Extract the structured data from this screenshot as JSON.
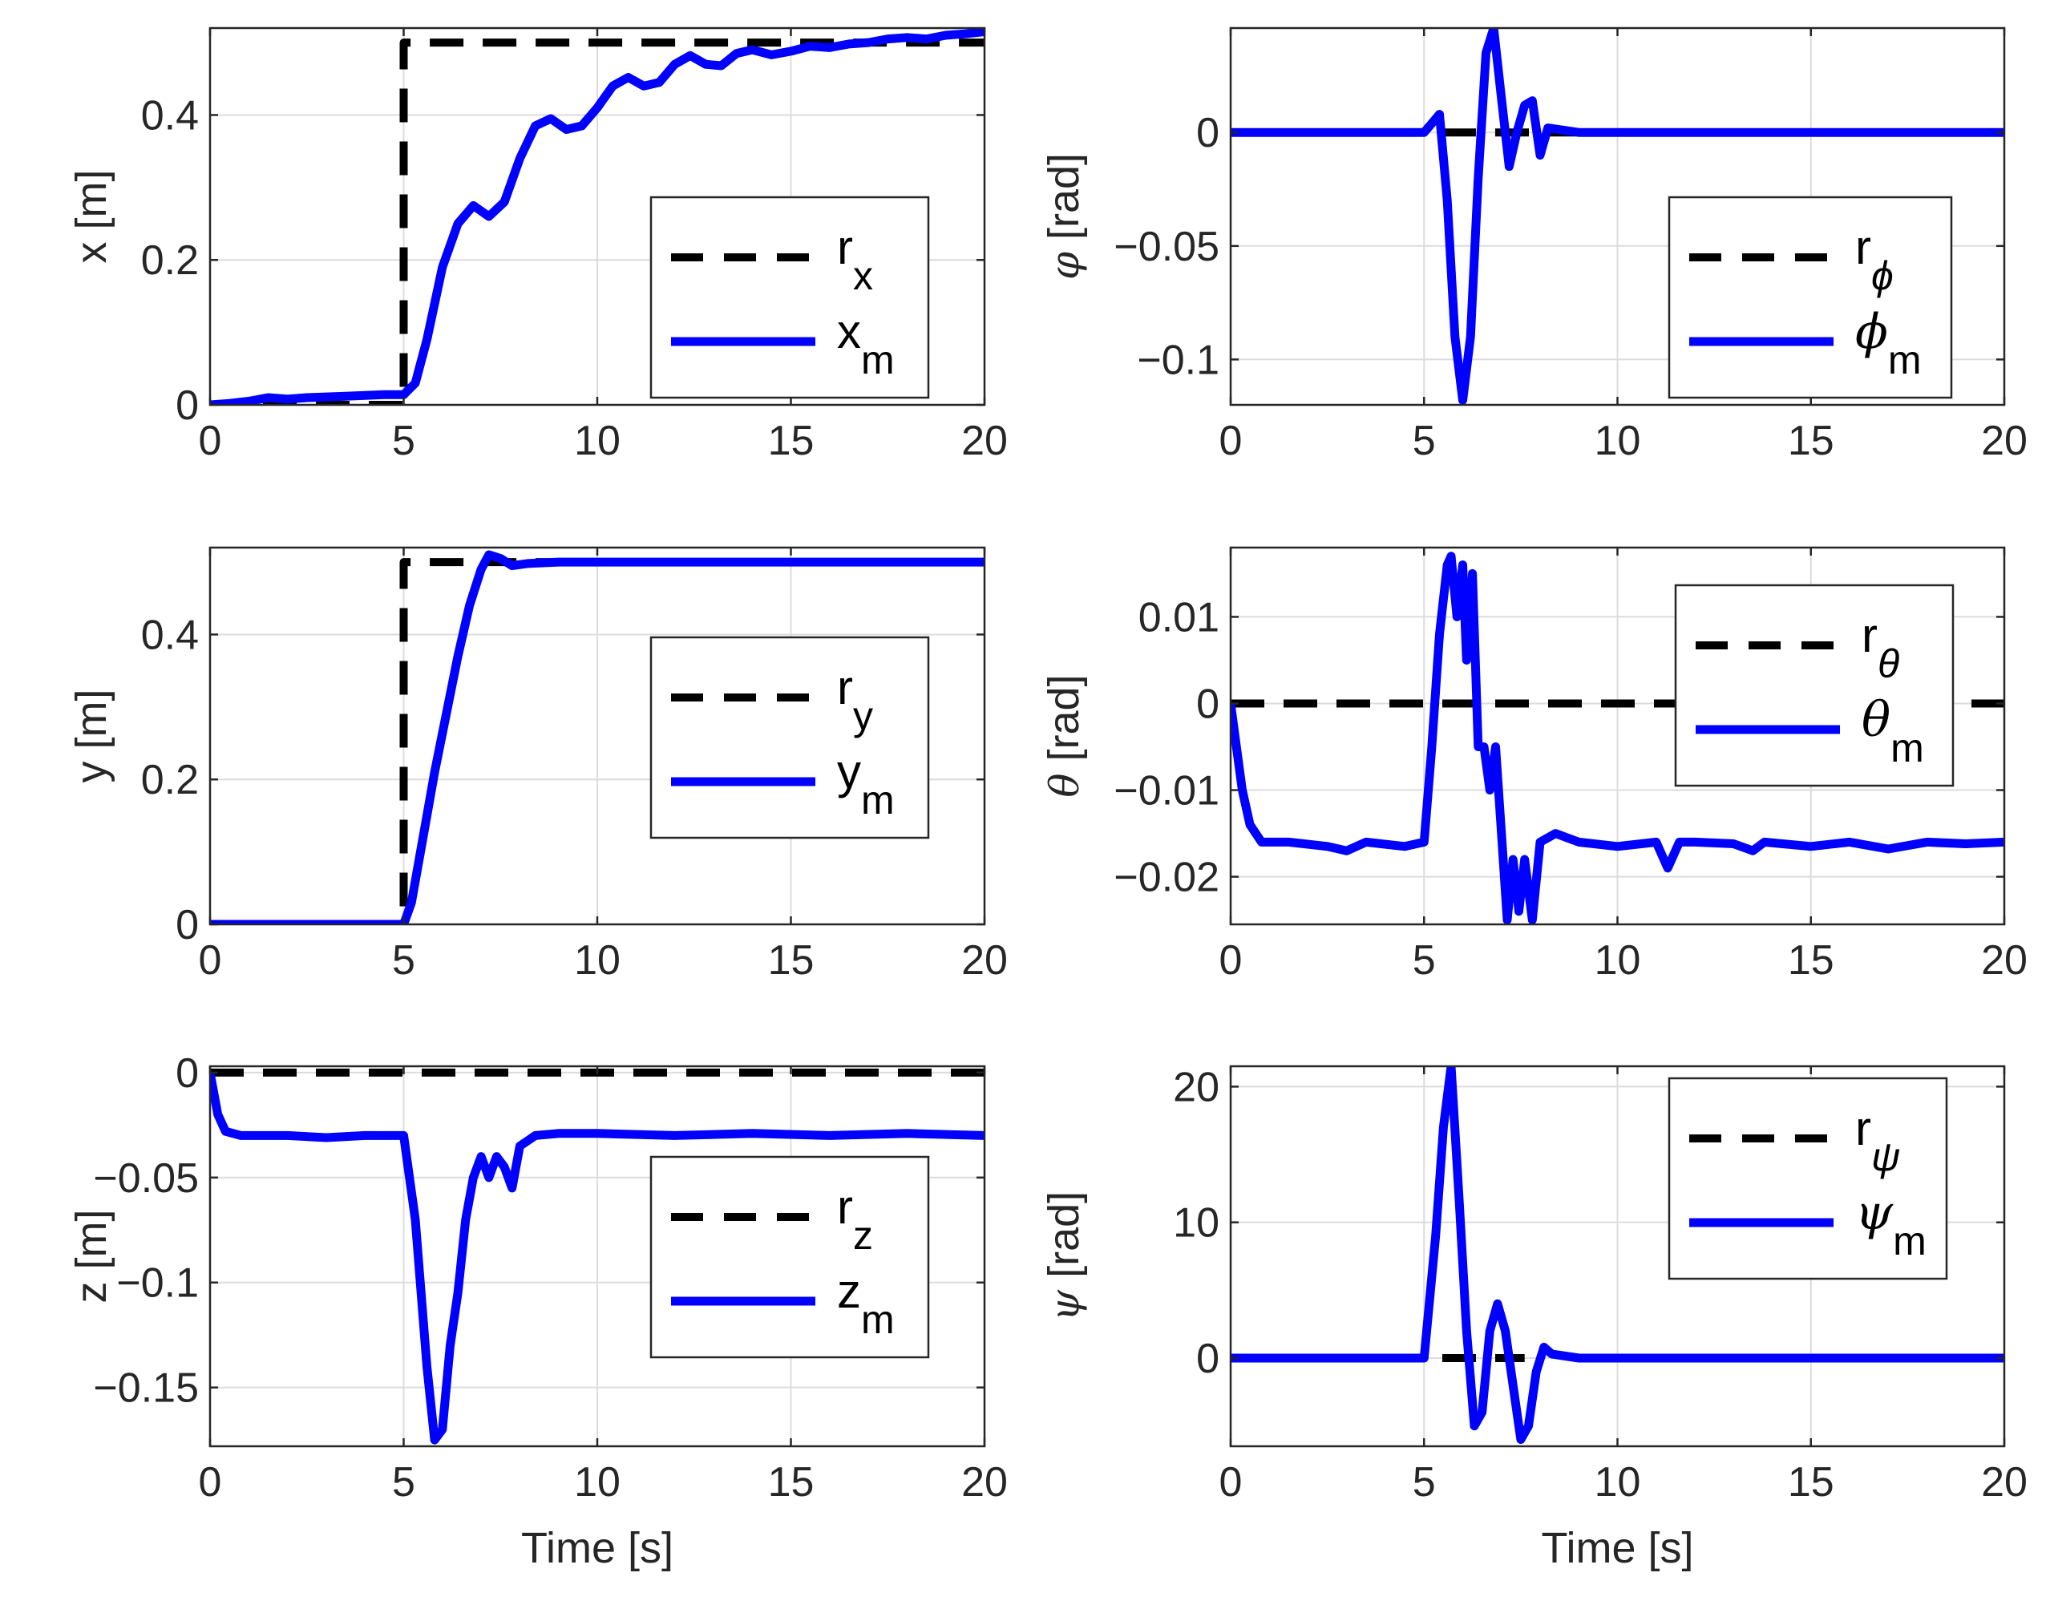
{
  "colors": {
    "reference": "#000000",
    "measured": "#0000ff",
    "grid": "#dcdcdc",
    "axis": "#262626"
  },
  "chart_data": [
    {
      "type": "line",
      "id": "x",
      "ylabel": "x [m]",
      "xlabel": "",
      "xlim": [
        0,
        20
      ],
      "ylim": [
        0,
        0.52
      ],
      "xticks": [
        0,
        5,
        10,
        15,
        20
      ],
      "xtick_labels": [
        "0",
        "5",
        "10",
        "15",
        "20"
      ],
      "yticks": [
        0,
        0.2,
        0.4
      ],
      "ytick_labels": [
        "0",
        "0.2",
        "0.4"
      ],
      "legend": {
        "position": "right-middle",
        "entries": [
          {
            "base": "r",
            "sub": "x",
            "greek": false
          },
          {
            "base": "x",
            "sub": "m",
            "greek": false
          }
        ]
      },
      "series": [
        {
          "name": "r_x",
          "style": "dashed",
          "x": [
            0,
            4.9,
            5.0,
            5.0,
            20
          ],
          "y": [
            0,
            0,
            0,
            0.5,
            0.5
          ]
        },
        {
          "name": "x_m",
          "style": "solid",
          "x": [
            0,
            0.5,
            1,
            1.5,
            2,
            2.5,
            3,
            3.5,
            4,
            4.5,
            5,
            5.3,
            5.6,
            6,
            6.4,
            6.8,
            7.2,
            7.6,
            8,
            8.4,
            8.8,
            9.2,
            9.6,
            10,
            10.4,
            10.8,
            11.2,
            11.6,
            12,
            12.4,
            12.8,
            13.2,
            13.6,
            14,
            14.5,
            15,
            15.5,
            16,
            16.5,
            17,
            17.5,
            18,
            18.5,
            19,
            19.5,
            20
          ],
          "y": [
            0.0,
            0.002,
            0.005,
            0.01,
            0.008,
            0.01,
            0.011,
            0.012,
            0.013,
            0.014,
            0.014,
            0.03,
            0.09,
            0.19,
            0.25,
            0.275,
            0.26,
            0.28,
            0.34,
            0.385,
            0.395,
            0.38,
            0.385,
            0.41,
            0.44,
            0.452,
            0.44,
            0.445,
            0.47,
            0.482,
            0.47,
            0.468,
            0.485,
            0.49,
            0.483,
            0.488,
            0.495,
            0.493,
            0.498,
            0.5,
            0.505,
            0.507,
            0.505,
            0.51,
            0.512,
            0.515
          ]
        }
      ]
    },
    {
      "type": "line",
      "id": "phi",
      "ylabel_greek": "φ",
      "ylabel_unit": " [rad]",
      "xlabel": "",
      "xlim": [
        0,
        20
      ],
      "ylim": [
        -0.12,
        0.046
      ],
      "xticks": [
        0,
        5,
        10,
        15,
        20
      ],
      "xtick_labels": [
        "0",
        "5",
        "10",
        "15",
        "20"
      ],
      "yticks": [
        -0.1,
        -0.05,
        0
      ],
      "ytick_labels": [
        "−0.1",
        "−0.05",
        "0"
      ],
      "legend": {
        "position": "right-lower",
        "entries": [
          {
            "base": "r",
            "sub": "ϕ",
            "greek": false
          },
          {
            "base": "ϕ",
            "sub": "m",
            "greek": true
          }
        ]
      },
      "series": [
        {
          "name": "r_phi",
          "style": "dashed",
          "x": [
            0,
            20
          ],
          "y": [
            0,
            0
          ]
        },
        {
          "name": "phi_m",
          "style": "solid",
          "x": [
            0,
            2,
            4,
            5,
            5.2,
            5.4,
            5.6,
            5.8,
            6.0,
            6.2,
            6.4,
            6.6,
            6.8,
            7.0,
            7.2,
            7.4,
            7.6,
            7.8,
            8.0,
            8.2,
            9,
            12,
            15,
            18,
            20
          ],
          "y": [
            0,
            0.0,
            0.0,
            0.0,
            0.004,
            0.008,
            -0.03,
            -0.09,
            -0.118,
            -0.09,
            -0.02,
            0.035,
            0.046,
            0.015,
            -0.015,
            0.0,
            0.012,
            0.014,
            -0.01,
            0.002,
            0.0,
            0.0,
            0.0,
            0.0,
            0.0
          ]
        }
      ]
    },
    {
      "type": "line",
      "id": "y",
      "ylabel": "y [m]",
      "xlabel": "",
      "xlim": [
        0,
        20
      ],
      "ylim": [
        0,
        0.52
      ],
      "xticks": [
        0,
        5,
        10,
        15,
        20
      ],
      "xtick_labels": [
        "0",
        "5",
        "10",
        "15",
        "20"
      ],
      "yticks": [
        0,
        0.2,
        0.4
      ],
      "ytick_labels": [
        "0",
        "0.2",
        "0.4"
      ],
      "legend": {
        "position": "right-middle",
        "entries": [
          {
            "base": "r",
            "sub": "y",
            "greek": false
          },
          {
            "base": "y",
            "sub": "m",
            "greek": false
          }
        ]
      },
      "series": [
        {
          "name": "r_y",
          "style": "dashed",
          "x": [
            0,
            4.9,
            5.0,
            5.0,
            20
          ],
          "y": [
            0,
            0,
            0,
            0.5,
            0.5
          ]
        },
        {
          "name": "y_m",
          "style": "solid",
          "x": [
            0,
            4.8,
            5.0,
            5.2,
            5.5,
            5.8,
            6.1,
            6.4,
            6.7,
            7.0,
            7.2,
            7.5,
            7.8,
            8.2,
            9,
            12,
            15,
            18,
            20
          ],
          "y": [
            0,
            0,
            0.0,
            0.03,
            0.12,
            0.21,
            0.29,
            0.37,
            0.44,
            0.49,
            0.51,
            0.505,
            0.495,
            0.498,
            0.5,
            0.5,
            0.5,
            0.5,
            0.5
          ]
        }
      ]
    },
    {
      "type": "line",
      "id": "theta",
      "ylabel_greek": "θ",
      "ylabel_unit": " [rad]",
      "xlabel": "",
      "xlim": [
        0,
        20
      ],
      "ylim": [
        -0.0255,
        0.018
      ],
      "xticks": [
        0,
        5,
        10,
        15,
        20
      ],
      "xtick_labels": [
        "0",
        "5",
        "10",
        "15",
        "20"
      ],
      "yticks": [
        -0.02,
        -0.01,
        0,
        0.01
      ],
      "ytick_labels": [
        "−0.02",
        "−0.01",
        "0",
        "0.01"
      ],
      "legend": {
        "position": "right-upper",
        "entries": [
          {
            "base": "r",
            "sub": "θ",
            "greek": false
          },
          {
            "base": "θ",
            "sub": "m",
            "greek": true
          }
        ]
      },
      "series": [
        {
          "name": "r_theta",
          "style": "dashed",
          "x": [
            0,
            20
          ],
          "y": [
            0,
            0
          ]
        },
        {
          "name": "theta_m",
          "style": "solid",
          "x": [
            0,
            0.15,
            0.3,
            0.5,
            0.8,
            1.5,
            2.5,
            3.0,
            3.5,
            4.5,
            5.0,
            5.2,
            5.4,
            5.6,
            5.7,
            5.85,
            6.0,
            6.1,
            6.25,
            6.4,
            6.55,
            6.7,
            6.85,
            7.0,
            7.15,
            7.3,
            7.45,
            7.6,
            7.8,
            8.0,
            8.4,
            9,
            10,
            11,
            11.3,
            11.6,
            12,
            13,
            13.5,
            13.8,
            15,
            16,
            17,
            18,
            19,
            20
          ],
          "y": [
            0,
            -0.005,
            -0.01,
            -0.014,
            -0.016,
            -0.016,
            -0.0165,
            -0.017,
            -0.016,
            -0.0165,
            -0.016,
            -0.005,
            0.008,
            0.016,
            0.017,
            0.01,
            0.016,
            0.005,
            0.015,
            -0.005,
            -0.005,
            -0.01,
            -0.005,
            -0.015,
            -0.025,
            -0.018,
            -0.024,
            -0.018,
            -0.025,
            -0.016,
            -0.015,
            -0.016,
            -0.0165,
            -0.016,
            -0.019,
            -0.016,
            -0.016,
            -0.0162,
            -0.017,
            -0.016,
            -0.0165,
            -0.016,
            -0.0168,
            -0.016,
            -0.0162,
            -0.016
          ]
        }
      ]
    },
    {
      "type": "line",
      "id": "z",
      "ylabel": "z [m]",
      "xlabel": "Time [s]",
      "xlim": [
        0,
        20
      ],
      "ylim": [
        -0.178,
        0.003
      ],
      "xticks": [
        0,
        5,
        10,
        15,
        20
      ],
      "xtick_labels": [
        "0",
        "5",
        "10",
        "15",
        "20"
      ],
      "yticks": [
        -0.15,
        -0.1,
        -0.05,
        0
      ],
      "ytick_labels": [
        "−0.15",
        "−0.1",
        "−0.05",
        "0"
      ],
      "legend": {
        "position": "right-middle",
        "entries": [
          {
            "base": "r",
            "sub": "z",
            "greek": false
          },
          {
            "base": "z",
            "sub": "m",
            "greek": false
          }
        ]
      },
      "series": [
        {
          "name": "r_z",
          "style": "dashed",
          "x": [
            0,
            20
          ],
          "y": [
            0,
            0
          ]
        },
        {
          "name": "z_m",
          "style": "solid",
          "x": [
            0,
            0.1,
            0.2,
            0.4,
            0.8,
            2,
            3,
            4,
            5,
            5.3,
            5.6,
            5.8,
            6.0,
            6.2,
            6.4,
            6.6,
            6.8,
            7.0,
            7.2,
            7.4,
            7.6,
            7.8,
            8.0,
            8.4,
            9,
            10,
            12,
            14,
            16,
            18,
            20
          ],
          "y": [
            0,
            -0.01,
            -0.02,
            -0.028,
            -0.03,
            -0.03,
            -0.031,
            -0.03,
            -0.03,
            -0.07,
            -0.14,
            -0.175,
            -0.17,
            -0.13,
            -0.105,
            -0.07,
            -0.05,
            -0.04,
            -0.05,
            -0.04,
            -0.045,
            -0.055,
            -0.035,
            -0.03,
            -0.029,
            -0.029,
            -0.03,
            -0.029,
            -0.03,
            -0.029,
            -0.03
          ]
        }
      ]
    },
    {
      "type": "line",
      "id": "psi",
      "ylabel_greek": "ψ",
      "ylabel_unit": " [rad]",
      "xlabel": "Time [s]",
      "xlim": [
        0,
        20
      ],
      "ylim": [
        -6.5,
        21.5
      ],
      "xticks": [
        0,
        5,
        10,
        15,
        20
      ],
      "xtick_labels": [
        "0",
        "5",
        "10",
        "15",
        "20"
      ],
      "yticks": [
        0,
        10,
        20
      ],
      "ytick_labels": [
        "0",
        "10",
        "20"
      ],
      "legend": {
        "position": "right-upper",
        "entries": [
          {
            "base": "r",
            "sub": "ψ",
            "greek": false
          },
          {
            "base": "ψ",
            "sub": "m",
            "greek": true
          }
        ]
      },
      "series": [
        {
          "name": "r_psi",
          "style": "dashed",
          "x": [
            0,
            7.6
          ],
          "y": [
            0,
            0
          ]
        },
        {
          "name": "psi_m",
          "style": "solid",
          "x": [
            0,
            2,
            4,
            5.0,
            5.1,
            5.3,
            5.5,
            5.7,
            5.9,
            6.1,
            6.3,
            6.5,
            6.7,
            6.9,
            7.1,
            7.3,
            7.5,
            7.7,
            7.9,
            8.1,
            8.3,
            9,
            10,
            12,
            15,
            18,
            20
          ],
          "y": [
            0,
            0,
            0,
            0,
            3,
            9,
            17,
            21.5,
            12,
            2,
            -5,
            -4,
            2,
            4,
            2,
            -2,
            -6,
            -5,
            -1,
            0.8,
            0.3,
            0,
            0,
            0,
            0,
            0,
            0
          ]
        }
      ]
    }
  ]
}
